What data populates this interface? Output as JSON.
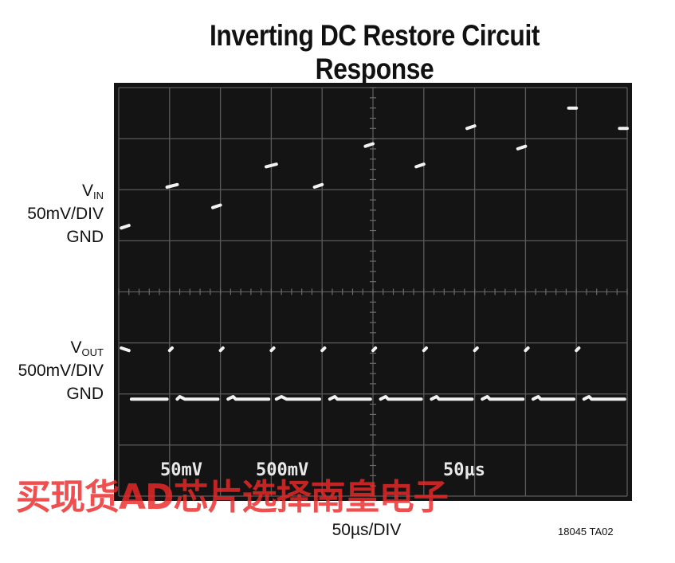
{
  "chart_data": {
    "type": "line",
    "title": "Inverting DC Restore Circuit Response",
    "xlabel": "50µs/DIV",
    "figure_code": "18045 TA02",
    "scope_readouts": [
      "50mV",
      "500mV",
      "50µs"
    ],
    "channels": [
      {
        "name": "VIN",
        "name_main": "V",
        "name_sub": "IN",
        "scale": "50mV/DIV",
        "ground": "GND"
      },
      {
        "name": "VOUT",
        "name_main": "V",
        "name_sub": "OUT",
        "scale": "500mV/DIV",
        "ground": "GND"
      }
    ],
    "grid": {
      "x_divisions": 10,
      "y_divisions": 8
    },
    "series": [
      {
        "name": "VIN",
        "x": [
          0.05,
          0.2,
          0.95,
          1.15,
          1.85,
          2.0,
          2.9,
          3.1,
          3.85,
          4.0,
          4.85,
          5.0,
          5.85,
          6.0,
          6.85,
          7.0,
          7.85,
          8.0,
          8.85,
          9.0,
          9.85,
          10.0
        ],
        "y": [
          5.25,
          5.3,
          6.05,
          6.1,
          5.65,
          5.7,
          6.45,
          6.5,
          6.05,
          6.1,
          6.85,
          6.9,
          6.45,
          6.5,
          7.2,
          7.25,
          6.8,
          6.85,
          7.6,
          7.6,
          7.2,
          7.2
        ]
      },
      {
        "name": "VOUT",
        "x": [
          0.05,
          0.2,
          0.25,
          0.95,
          1.0,
          1.05,
          1.15,
          1.2,
          1.3,
          1.95,
          2.0,
          2.05,
          2.15,
          2.25,
          2.3,
          2.95,
          3.0,
          3.05,
          3.1,
          3.2,
          3.3,
          3.95,
          4.0,
          4.05,
          4.15,
          4.25,
          4.3,
          4.95,
          5.0,
          5.05,
          5.15,
          5.25,
          5.3,
          5.95,
          6.0,
          6.05,
          6.15,
          6.25,
          6.3,
          6.95,
          7.0,
          7.05,
          7.15,
          7.25,
          7.3,
          7.95,
          8.0,
          8.05,
          8.15,
          8.25,
          8.3,
          8.95,
          9.0,
          9.05,
          9.15,
          9.25,
          9.3,
          9.95
        ],
        "y": [
          2.9,
          2.85,
          1.9,
          1.9,
          2.85,
          2.9,
          1.9,
          1.95,
          1.9,
          1.9,
          2.85,
          2.9,
          1.9,
          1.95,
          1.9,
          1.9,
          2.85,
          2.9,
          1.9,
          1.95,
          1.9,
          1.9,
          2.85,
          2.9,
          1.9,
          1.95,
          1.9,
          1.9,
          2.85,
          2.9,
          1.9,
          1.95,
          1.9,
          1.9,
          2.85,
          2.9,
          1.9,
          1.95,
          1.9,
          1.9,
          2.85,
          2.9,
          1.9,
          1.95,
          1.9,
          1.9,
          2.85,
          2.9,
          1.9,
          1.95,
          1.9,
          1.9,
          2.85,
          2.9,
          1.9,
          1.95,
          1.9,
          1.9
        ]
      }
    ]
  },
  "watermark": "买现货AD芯片选择南皇电子"
}
